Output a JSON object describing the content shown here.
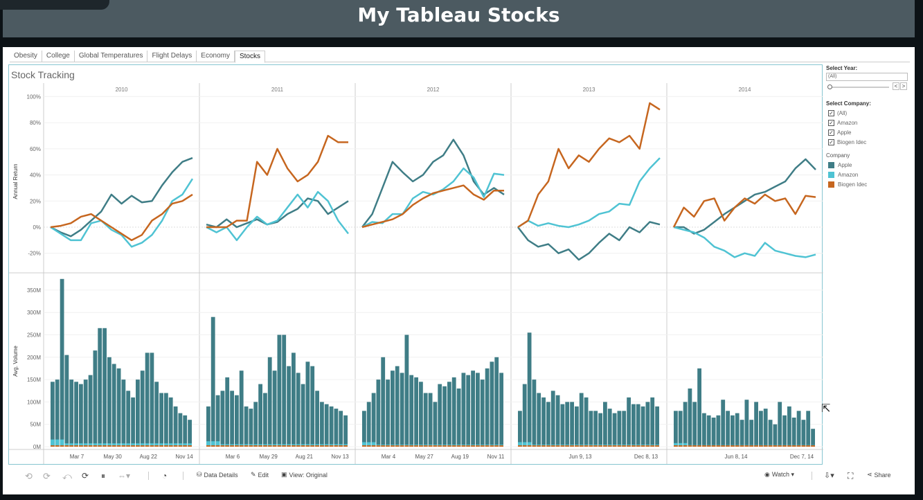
{
  "banner": {
    "title": "My Tableau Stocks"
  },
  "tabs": [
    "Obesity",
    "College",
    "Global Temperatures",
    "Flight Delays",
    "Economy",
    "Stocks"
  ],
  "active_tab": "Stocks",
  "dashboard": {
    "title": "Stock Tracking"
  },
  "colors": {
    "apple": "#3f7d86",
    "amazon": "#4fc3d3",
    "biogen": "#c6661f",
    "frame": "#86c5d0"
  },
  "chart_data": [
    {
      "type": "line",
      "ylabel": "Annual Return",
      "ytick_labels": [
        "100%",
        "80%",
        "60%",
        "40%",
        "20%",
        "0%",
        "-20%"
      ],
      "ylim": [
        -0.35,
        1.05
      ],
      "columns": [
        {
          "year": "2010",
          "xticks": [
            "Mar 7",
            "May 30",
            "Aug 22",
            "Nov 14"
          ]
        },
        {
          "year": "2011",
          "xticks": [
            "Mar 6",
            "May 29",
            "Aug 21",
            "Nov 13"
          ]
        },
        {
          "year": "2012",
          "xticks": [
            "Mar 4",
            "May 27",
            "Aug 19",
            "Nov 11"
          ]
        },
        {
          "year": "2013",
          "xticks": [
            "Jun 9, 13",
            "Dec 8, 13"
          ]
        },
        {
          "year": "2014",
          "xticks": [
            "Jun 8, 14",
            "Dec 7, 14"
          ]
        }
      ],
      "series": [
        {
          "name": "Apple",
          "values": [
            [
              0,
              -0.04,
              -0.07,
              -0.02,
              0.05,
              0.12,
              0.25,
              0.18,
              0.24,
              0.19,
              0.2,
              0.32,
              0.42,
              0.5,
              0.53
            ],
            [
              0.02,
              0.0,
              0.06,
              0.0,
              0.03,
              0.06,
              0.02,
              0.04,
              0.1,
              0.14,
              0.22,
              0.2,
              0.1,
              0.15,
              0.2
            ],
            [
              0.0,
              0.1,
              0.3,
              0.5,
              0.42,
              0.35,
              0.4,
              0.5,
              0.55,
              0.67,
              0.55,
              0.35,
              0.25,
              0.3,
              0.25
            ],
            [
              0.0,
              -0.1,
              -0.15,
              -0.13,
              -0.2,
              -0.17,
              -0.25,
              -0.2,
              -0.12,
              -0.05,
              -0.1,
              0.0,
              -0.04,
              0.04,
              0.02
            ],
            [
              0.0,
              0.0,
              -0.05,
              -0.02,
              0.04,
              0.1,
              0.15,
              0.2,
              0.25,
              0.27,
              0.31,
              0.35,
              0.45,
              0.52,
              0.44
            ]
          ]
        },
        {
          "name": "Amazon",
          "values": [
            [
              0,
              -0.05,
              -0.1,
              -0.1,
              0.03,
              0.05,
              -0.02,
              -0.06,
              -0.15,
              -0.12,
              -0.06,
              0.05,
              0.2,
              0.25,
              0.37
            ],
            [
              0.0,
              -0.04,
              0.0,
              -0.1,
              0.0,
              0.08,
              0.02,
              0.05,
              0.15,
              0.25,
              0.15,
              0.27,
              0.2,
              0.05,
              -0.05
            ],
            [
              0.0,
              0.04,
              0.03,
              0.1,
              0.1,
              0.22,
              0.27,
              0.25,
              0.29,
              0.35,
              0.45,
              0.38,
              0.23,
              0.41,
              0.4
            ],
            [
              0.0,
              0.05,
              0.01,
              0.03,
              0.01,
              0.0,
              0.02,
              0.05,
              0.1,
              0.12,
              0.18,
              0.17,
              0.35,
              0.45,
              0.53
            ],
            [
              0.0,
              -0.02,
              -0.04,
              -0.08,
              -0.15,
              -0.18,
              -0.23,
              -0.2,
              -0.22,
              -0.12,
              -0.18,
              -0.2,
              -0.22,
              -0.23,
              -0.21
            ]
          ]
        },
        {
          "name": "Biogen Idec",
          "values": [
            [
              0,
              0.01,
              0.03,
              0.08,
              0.1,
              0.05,
              0.0,
              -0.05,
              -0.1,
              -0.06,
              0.05,
              0.1,
              0.18,
              0.2,
              0.25
            ],
            [
              0.0,
              0.0,
              0.0,
              0.05,
              0.05,
              0.5,
              0.4,
              0.6,
              0.45,
              0.35,
              0.4,
              0.5,
              0.7,
              0.65,
              0.65
            ],
            [
              0.0,
              0.02,
              0.04,
              0.06,
              0.1,
              0.17,
              0.22,
              0.26,
              0.28,
              0.3,
              0.32,
              0.25,
              0.21,
              0.28,
              0.28
            ],
            [
              0.0,
              0.05,
              0.25,
              0.35,
              0.6,
              0.45,
              0.55,
              0.5,
              0.6,
              0.68,
              0.65,
              0.7,
              0.6,
              0.95,
              0.9
            ],
            [
              0.0,
              0.15,
              0.08,
              0.2,
              0.22,
              0.05,
              0.15,
              0.22,
              0.18,
              0.25,
              0.2,
              0.22,
              0.1,
              0.24,
              0.23
            ]
          ]
        }
      ]
    },
    {
      "type": "bar",
      "ylabel": "Avg. Volume",
      "ytick_labels": [
        "350M",
        "300M",
        "250M",
        "200M",
        "150M",
        "100M",
        "50M",
        "0M"
      ],
      "ylim": [
        0,
        370
      ],
      "series": [
        {
          "name": "Apple",
          "values": [
            [
              145,
              150,
              375,
              205,
              150,
              145,
              140,
              150,
              160,
              215,
              265,
              265,
              200,
              185,
              175,
              150,
              125,
              110,
              150,
              170,
              210,
              210,
              145,
              120,
              120,
              110,
              90,
              75,
              70,
              60
            ],
            [
              90,
              290,
              115,
              125,
              155,
              125,
              115,
              170,
              90,
              85,
              100,
              140,
              120,
              200,
              170,
              250,
              250,
              180,
              210,
              165,
              140,
              190,
              180,
              125,
              100,
              95,
              90,
              85,
              80,
              70
            ],
            [
              80,
              100,
              120,
              150,
              200,
              150,
              170,
              180,
              165,
              250,
              160,
              155,
              145,
              120,
              120,
              100,
              140,
              135,
              145,
              155,
              130,
              165,
              160,
              170,
              165,
              150,
              175,
              190,
              200,
              165
            ],
            [
              80,
              140,
              255,
              150,
              120,
              110,
              100,
              125,
              115,
              95,
              100,
              100,
              90,
              120,
              110,
              80,
              80,
              75,
              100,
              85,
              75,
              80,
              80,
              110,
              95,
              95,
              90,
              100,
              110,
              90
            ],
            [
              80,
              80,
              100,
              130,
              100,
              175,
              75,
              70,
              65,
              70,
              105,
              80,
              70,
              75,
              60,
              105,
              60,
              100,
              80,
              85,
              60,
              50,
              100,
              70,
              90,
              65,
              80,
              60,
              80,
              40
            ]
          ]
        },
        {
          "name": "Amazon",
          "values": [
            8,
            6,
            5,
            5,
            4
          ]
        },
        {
          "name": "Biogen Idec",
          "values": [
            2,
            2,
            2,
            2,
            2
          ]
        }
      ]
    }
  ],
  "filters": {
    "year_label": "Select Year:",
    "year_value": "(All)",
    "prev": "<",
    "next": ">",
    "company_label": "Select Company:",
    "company_options": [
      "(All)",
      "Amazon",
      "Apple",
      "Biogen Idec"
    ],
    "check": "✓"
  },
  "legend": {
    "title": "Company",
    "items": [
      "Apple",
      "Amazon",
      "Biogen Idec"
    ]
  },
  "toolbar": {
    "data_details": "Data Details",
    "edit": "Edit",
    "view": "View: Original",
    "watch": "Watch ▾",
    "share": "Share"
  }
}
